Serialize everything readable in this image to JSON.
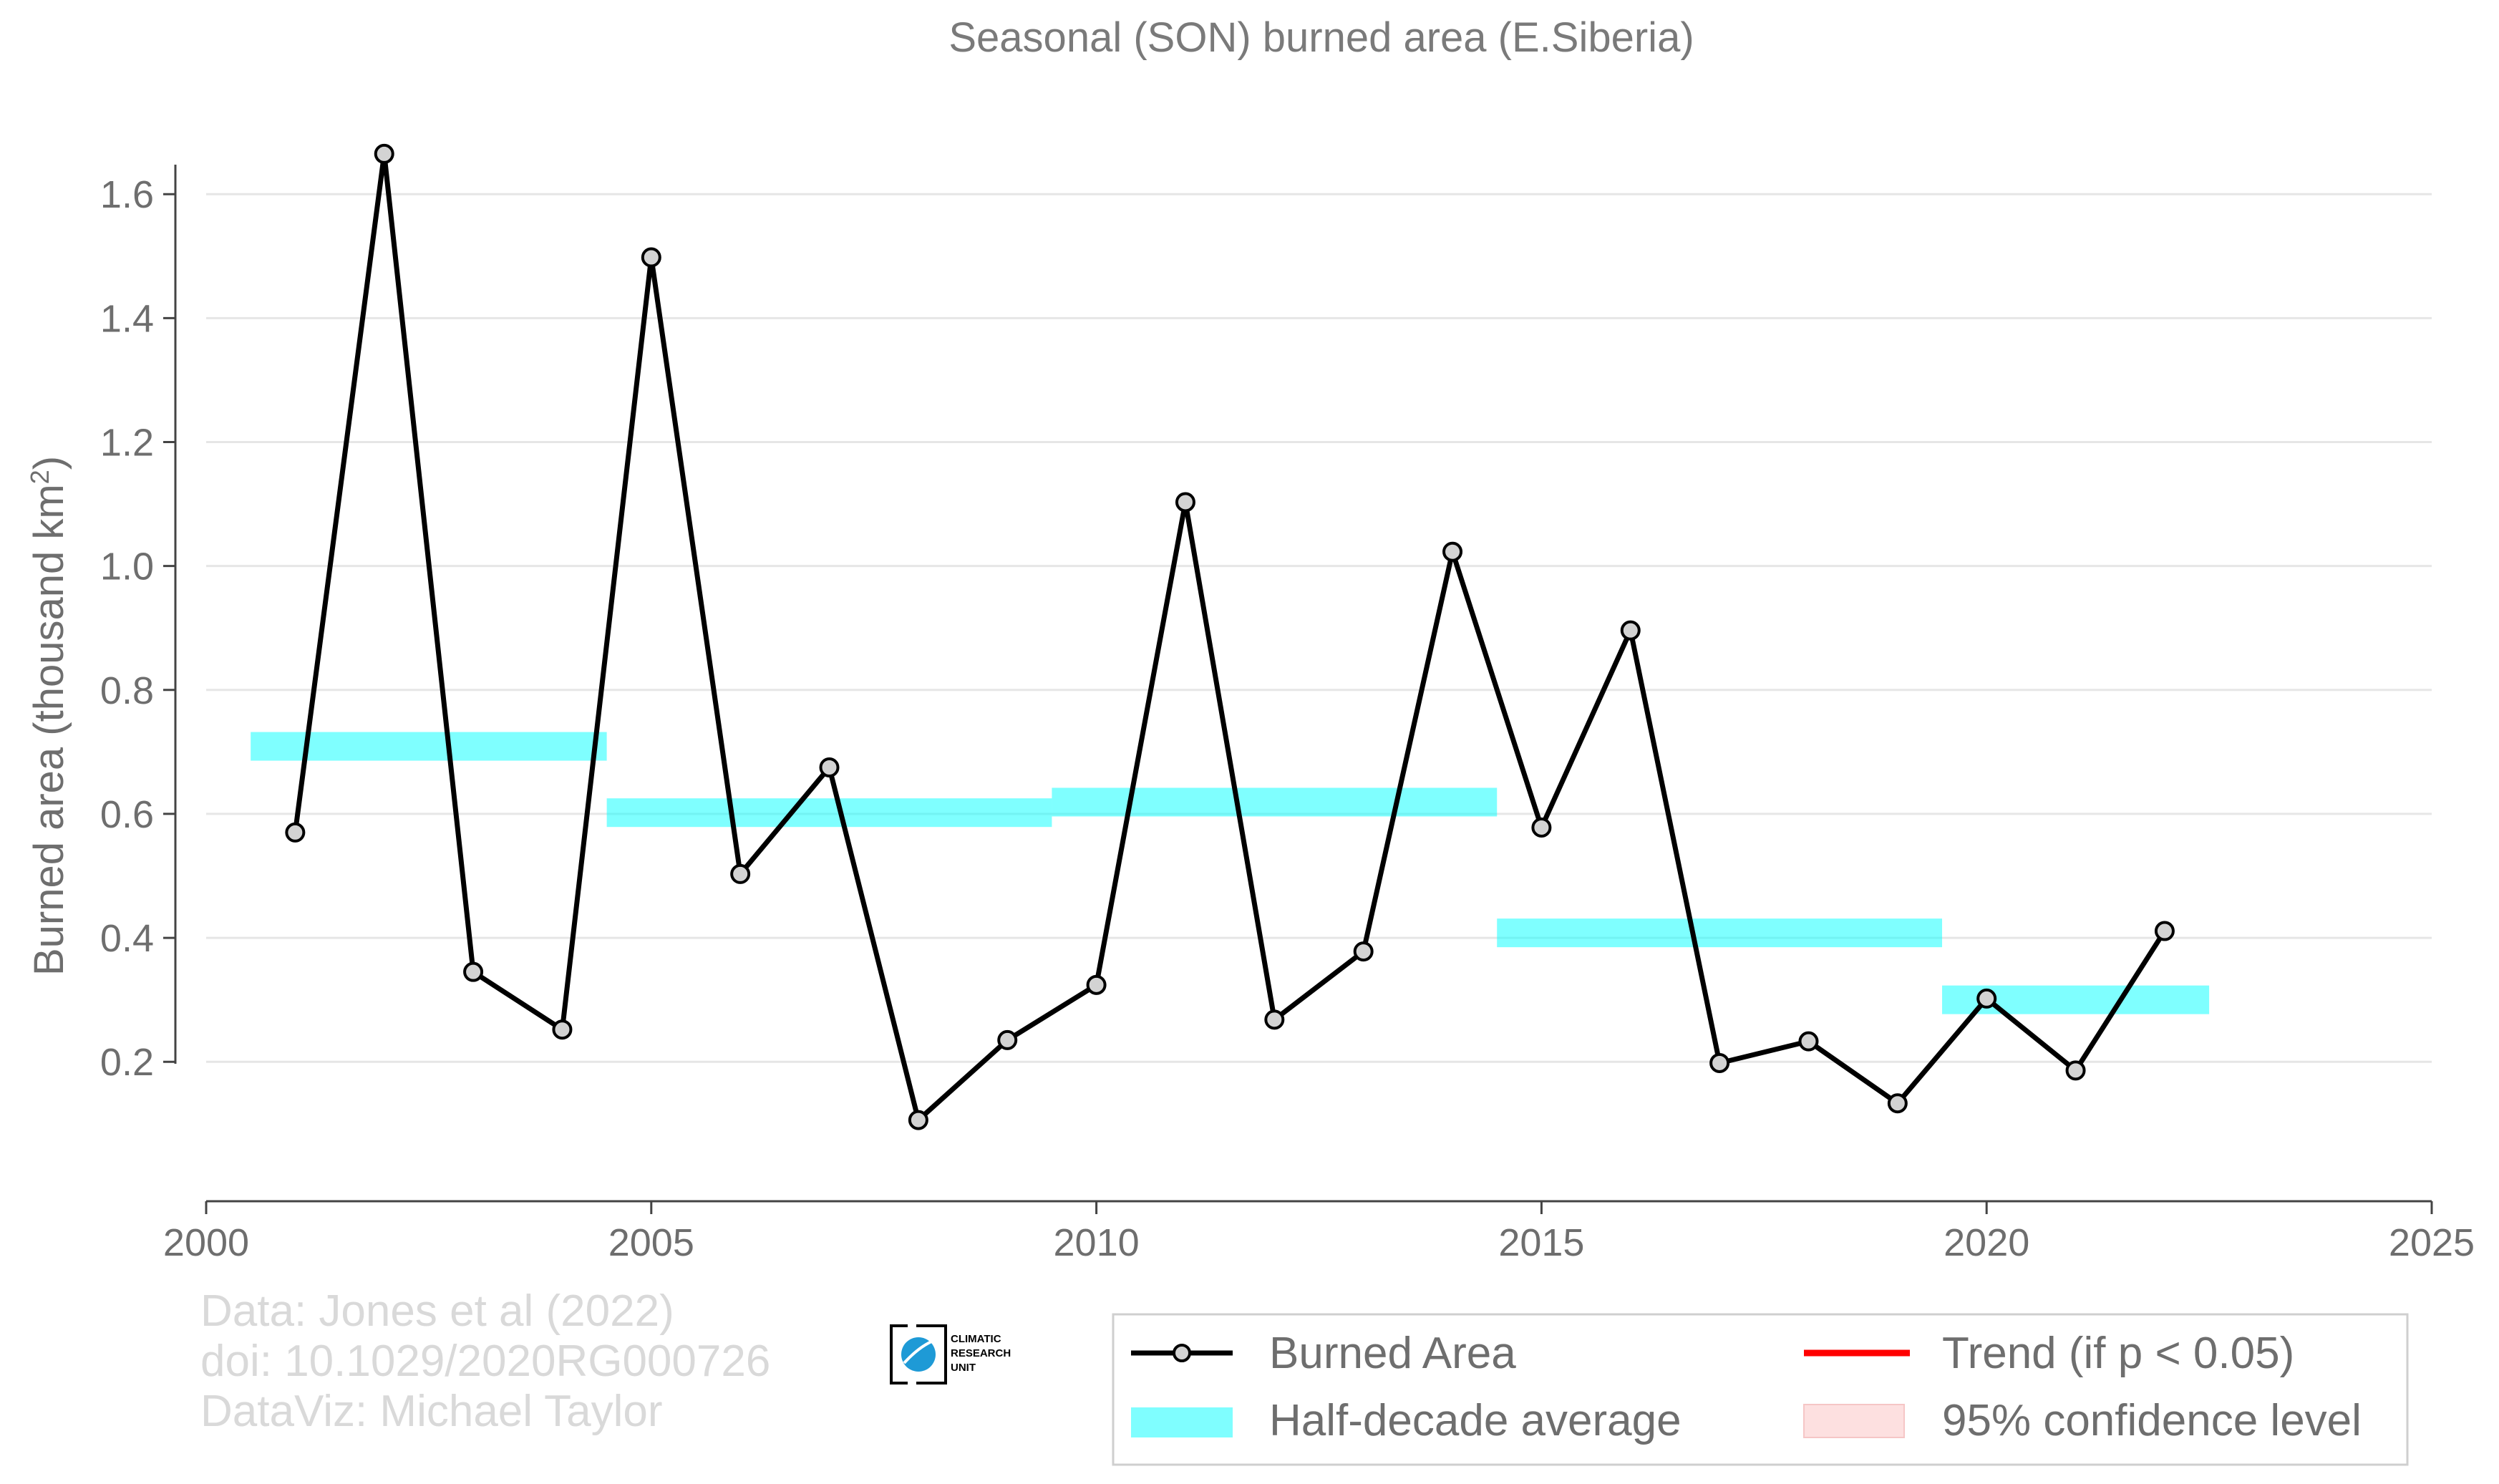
{
  "chart_data": {
    "type": "line",
    "title": "Seasonal (SON) burned area (E.Siberia)",
    "ylabel": "Burned area (thousand km",
    "ylabel_sup": "2",
    "ylabel_close": ")",
    "xlim": [
      2000,
      2025
    ],
    "ylim": [
      -0.025,
      1.74
    ],
    "x_ticks": [
      2000,
      2005,
      2010,
      2015,
      2020,
      2025
    ],
    "y_ticks": [
      0.2,
      0.4,
      0.6,
      0.8,
      1.0,
      1.2,
      1.4,
      1.6
    ],
    "y_tick_labels": [
      "0.2",
      "0.4",
      "0.6",
      "0.8",
      "1.0",
      "1.2",
      "1.4",
      "1.6"
    ],
    "grid": "horizontal",
    "legend_position": "bottom-right",
    "series": [
      {
        "name": "Burned Area",
        "color": "#000000",
        "marker_fill": "#d3d3d3",
        "x": [
          2001,
          2002,
          2003,
          2004,
          2005,
          2006,
          2007,
          2008,
          2009,
          2010,
          2011,
          2012,
          2013,
          2014,
          2015,
          2016,
          2017,
          2018,
          2019,
          2020,
          2021,
          2022
        ],
        "y": [
          0.57,
          1.665,
          0.345,
          0.252,
          1.498,
          0.503,
          0.675,
          0.106,
          0.235,
          0.324,
          1.103,
          0.268,
          0.378,
          1.023,
          0.578,
          0.896,
          0.198,
          0.233,
          0.133,
          0.302,
          0.186,
          0.411
        ]
      }
    ],
    "half_decade_average": {
      "name": "Half-decade average",
      "color": "#00ffff",
      "segments": [
        {
          "x_start": 2000.5,
          "x_end": 2004.5,
          "y": 0.709
        },
        {
          "x_start": 2004.5,
          "x_end": 2009.5,
          "y": 0.602
        },
        {
          "x_start": 2009.5,
          "x_end": 2014.5,
          "y": 0.619
        },
        {
          "x_start": 2014.5,
          "x_end": 2019.5,
          "y": 0.408
        },
        {
          "x_start": 2019.5,
          "x_end": 2022.5,
          "y": 0.3
        }
      ]
    },
    "legend": [
      {
        "label": "Burned Area",
        "kind": "line-marker",
        "color": "#000000"
      },
      {
        "label": "Trend (if p < 0.05)",
        "kind": "line",
        "color": "#ff0000"
      },
      {
        "label": "Half-decade average",
        "kind": "band",
        "color": "#7ffeff"
      },
      {
        "label": "95% confidence level",
        "kind": "band",
        "color": "#fde0e0"
      }
    ]
  },
  "credits": {
    "line1": "Data: Jones et al (2022)",
    "line2": "doi: 10.1029/2020RG000726",
    "line3": "DataViz: Michael Taylor"
  },
  "logo": {
    "line1": "CLIMATIC",
    "line2": "RESEARCH",
    "line3": "UNIT"
  }
}
